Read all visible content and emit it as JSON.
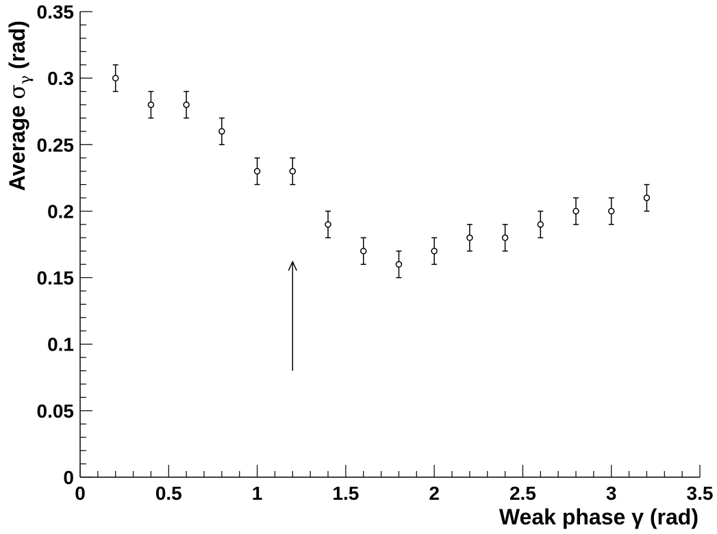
{
  "chart_data": {
    "type": "scatter",
    "title": "",
    "xlabel": "Weak phase γ (rad)",
    "ylabel": "Average σγ (rad)",
    "ylabel_parts": {
      "prefix": "Average ",
      "symbol": "σ",
      "subscript": "γ",
      "suffix": " (rad)"
    },
    "xlim": [
      0,
      3.5
    ],
    "ylim": [
      0,
      0.35
    ],
    "x_ticks": [
      "0",
      "0.5",
      "1",
      "1.5",
      "2",
      "2.5",
      "3",
      "3.5"
    ],
    "y_ticks": [
      "0",
      "0.05",
      "0.1",
      "0.15",
      "0.2",
      "0.25",
      "0.3",
      "0.35"
    ],
    "grid": false,
    "series": [
      {
        "marker": "open-circle",
        "points": [
          {
            "x": 0.2,
            "y": 0.3,
            "err": 0.01
          },
          {
            "x": 0.4,
            "y": 0.28,
            "err": 0.01
          },
          {
            "x": 0.6,
            "y": 0.28,
            "err": 0.01
          },
          {
            "x": 0.8,
            "y": 0.26,
            "err": 0.01
          },
          {
            "x": 1.0,
            "y": 0.23,
            "err": 0.01
          },
          {
            "x": 1.2,
            "y": 0.23,
            "err": 0.01
          },
          {
            "x": 1.4,
            "y": 0.19,
            "err": 0.01
          },
          {
            "x": 1.6,
            "y": 0.17,
            "err": 0.01
          },
          {
            "x": 1.8,
            "y": 0.16,
            "err": 0.01
          },
          {
            "x": 2.0,
            "y": 0.17,
            "err": 0.01
          },
          {
            "x": 2.2,
            "y": 0.18,
            "err": 0.01
          },
          {
            "x": 2.4,
            "y": 0.18,
            "err": 0.01
          },
          {
            "x": 2.6,
            "y": 0.19,
            "err": 0.01
          },
          {
            "x": 2.8,
            "y": 0.2,
            "err": 0.01
          },
          {
            "x": 3.0,
            "y": 0.2,
            "err": 0.01
          },
          {
            "x": 3.2,
            "y": 0.21,
            "err": 0.01
          }
        ]
      }
    ],
    "annotations": [
      {
        "type": "arrow",
        "x": 1.2,
        "y_from": 0.08,
        "y_to": 0.162
      }
    ]
  }
}
